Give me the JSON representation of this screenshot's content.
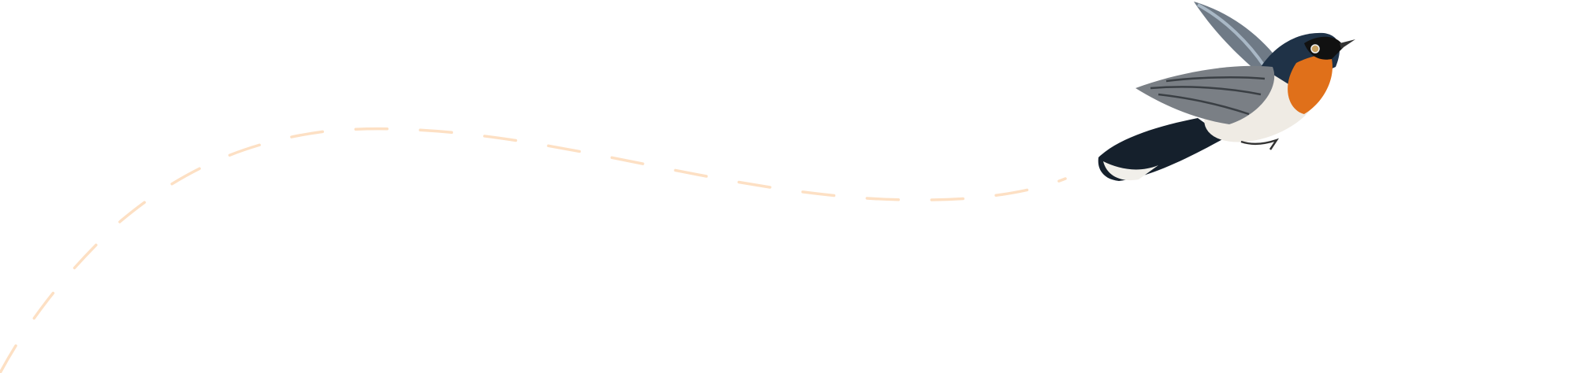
{
  "illustration": {
    "subject": "bird-icon",
    "colors": {
      "flight_path": "#fde0c4",
      "background": "#ffffff",
      "bird_back": "#1f3247",
      "bird_throat": "#e0701a",
      "bird_belly": "#efebe4",
      "bird_wing": "#7a7f85"
    }
  }
}
